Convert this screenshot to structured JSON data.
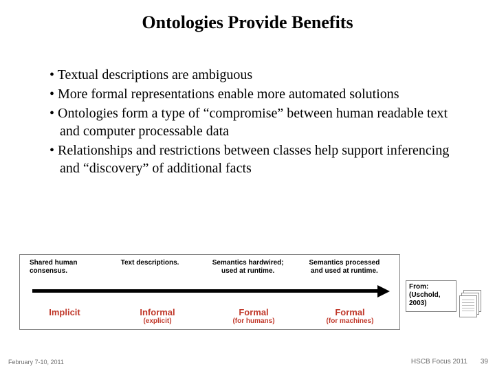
{
  "title": "Ontologies Provide Benefits",
  "bullets": [
    "Textual descriptions are ambiguous",
    "More formal representations enable more automated solutions",
    "Ontologies form a type of “compromise” between human readable text and computer processable data",
    "Relationships and restrictions between classes help support inferencing and “discovery” of additional facts"
  ],
  "diagram": {
    "top_labels": [
      "Shared human\nconsensus.",
      "Text descriptions.",
      "Semantics hardwired;\nused at runtime.",
      "Semantics processed\nand used at runtime."
    ],
    "bottom": [
      {
        "main": "Implicit",
        "sub": ""
      },
      {
        "main": "Informal",
        "sub": "(explicit)"
      },
      {
        "main": "Formal",
        "sub": "(for humans)"
      },
      {
        "main": "Formal",
        "sub": "(for machines)"
      }
    ],
    "colors": {
      "border": "#808080",
      "arrow": "#000000",
      "accent": "#c0392b",
      "background": "#ffffff"
    }
  },
  "citation": "From: (Uschold, 2003)",
  "footer": {
    "left": "February 7-10, 2011",
    "right": "HSCB Focus 2011",
    "page": "39"
  }
}
